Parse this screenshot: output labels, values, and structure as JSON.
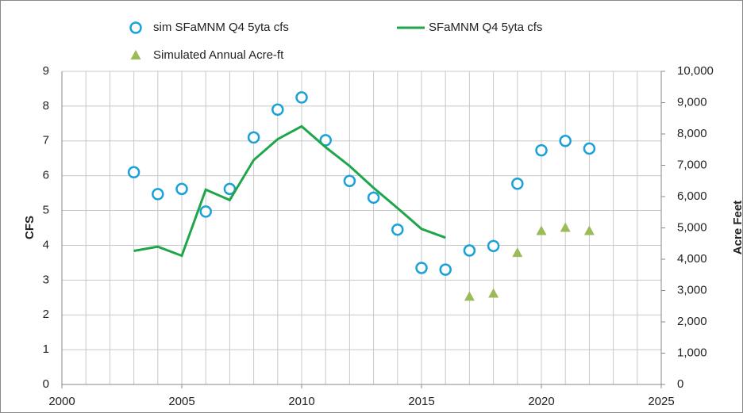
{
  "chart_data": {
    "type": "combo",
    "series": [
      {
        "name": "sim SFaMNM Q4 5yta cfs",
        "type": "scatter",
        "marker": "circle",
        "color": "#1ba1d8",
        "x": [
          2003,
          2004,
          2005,
          2006,
          2007,
          2008,
          2009,
          2010,
          2011,
          2012,
          2013,
          2014,
          2015,
          2016,
          2017,
          2018,
          2019,
          2020,
          2021,
          2022
        ],
        "values": [
          6.1,
          5.47,
          5.62,
          4.97,
          5.62,
          7.1,
          7.9,
          8.25,
          7.02,
          5.85,
          5.37,
          4.45,
          3.35,
          3.3,
          3.85,
          3.98,
          5.77,
          6.73,
          7.0,
          6.78
        ]
      },
      {
        "name": "SFaMNM Q4 5yta cfs",
        "type": "line",
        "color": "#1fa64a",
        "x": [
          2003,
          2004,
          2005,
          2006,
          2007,
          2008,
          2009,
          2010,
          2011,
          2012,
          2013,
          2014,
          2015,
          2016
        ],
        "values": [
          3.84,
          3.96,
          3.7,
          5.6,
          5.3,
          6.45,
          7.05,
          7.42,
          6.82,
          6.28,
          5.65,
          5.07,
          4.47,
          4.22
        ]
      },
      {
        "name": "Simulated Annual Acre-ft",
        "type": "scatter",
        "marker": "triangle",
        "color": "#9bbb59",
        "axis": "y2",
        "x": [
          2017,
          2018,
          2019,
          2020,
          2021,
          2022
        ],
        "values": [
          2800,
          2900,
          4200,
          4900,
          5000,
          4900
        ]
      }
    ],
    "y_label": "CFS",
    "y2_label": "Acre Feet",
    "xlim": [
      2000,
      2025
    ],
    "xticks": [
      2000,
      2005,
      2010,
      2015,
      2020,
      2025
    ],
    "xgrid_step": 1,
    "ylim": [
      0,
      9
    ],
    "yticks": [
      0,
      1,
      2,
      3,
      4,
      5,
      6,
      7,
      8,
      9
    ],
    "y2lim": [
      0,
      10000
    ],
    "y2ticks": [
      0,
      {
        "value": 1000,
        "label": "1,000"
      },
      {
        "value": 2000,
        "label": "2,000"
      },
      {
        "value": 3000,
        "label": "3,000"
      },
      {
        "value": 4000,
        "label": "4,000"
      },
      {
        "value": 5000,
        "label": "5,000"
      },
      {
        "value": 6000,
        "label": "6,000"
      },
      {
        "value": 7000,
        "label": "7,000"
      },
      {
        "value": 8000,
        "label": "8,000"
      },
      {
        "value": 9000,
        "label": "9,000"
      },
      {
        "value": 10000,
        "label": "10,000"
      }
    ],
    "grid": true
  }
}
